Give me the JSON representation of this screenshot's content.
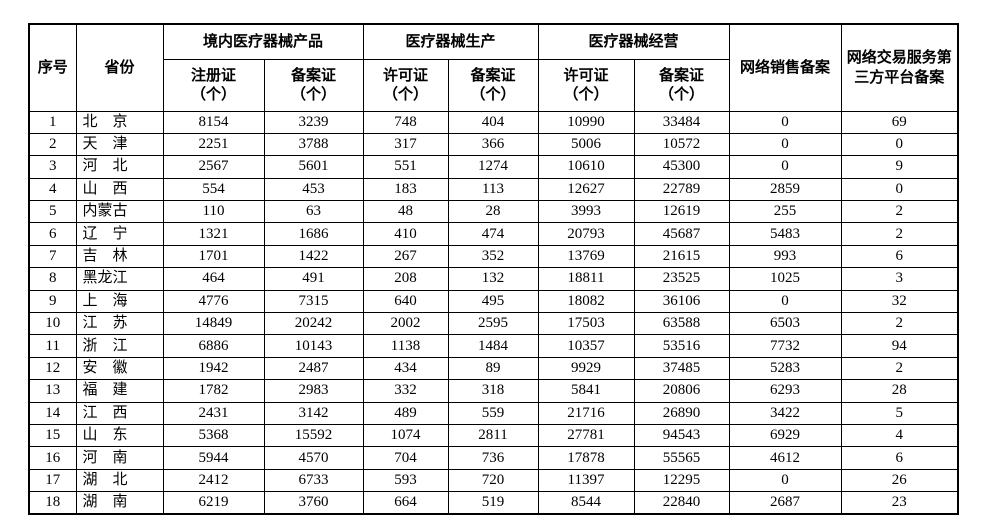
{
  "table": {
    "headers": {
      "no": "序号",
      "province": "省份",
      "domestic_products": "境内医疗器械产品",
      "production": "医疗器械生产",
      "operation": "医疗器械经营",
      "net_sales": "网络销售备案",
      "third_party": "网络交易服务第三方平台备案"
    },
    "sub_headers": [
      "注册证\n（个）",
      "备案证\n（个）",
      "许可证\n（个）",
      "备案证\n（个）",
      "许可证\n（个）",
      "备案证\n（个）"
    ],
    "rows": [
      [
        "1",
        "北　京",
        "8154",
        "3239",
        "748",
        "404",
        "10990",
        "33484",
        "0",
        "69"
      ],
      [
        "2",
        "天　津",
        "2251",
        "3788",
        "317",
        "366",
        "5006",
        "10572",
        "0",
        "0"
      ],
      [
        "3",
        "河　北",
        "2567",
        "5601",
        "551",
        "1274",
        "10610",
        "45300",
        "0",
        "9"
      ],
      [
        "4",
        "山　西",
        "554",
        "453",
        "183",
        "113",
        "12627",
        "22789",
        "2859",
        "0"
      ],
      [
        "5",
        "内蒙古",
        "110",
        "63",
        "48",
        "28",
        "3993",
        "12619",
        "255",
        "2"
      ],
      [
        "6",
        "辽　宁",
        "1321",
        "1686",
        "410",
        "474",
        "20793",
        "45687",
        "5483",
        "2"
      ],
      [
        "7",
        "吉　林",
        "1701",
        "1422",
        "267",
        "352",
        "13769",
        "21615",
        "993",
        "6"
      ],
      [
        "8",
        "黑龙江",
        "464",
        "491",
        "208",
        "132",
        "18811",
        "23525",
        "1025",
        "3"
      ],
      [
        "9",
        "上　海",
        "4776",
        "7315",
        "640",
        "495",
        "18082",
        "36106",
        "0",
        "32"
      ],
      [
        "10",
        "江　苏",
        "14849",
        "20242",
        "2002",
        "2595",
        "17503",
        "63588",
        "6503",
        "2"
      ],
      [
        "11",
        "浙　江",
        "6886",
        "10143",
        "1138",
        "1484",
        "10357",
        "53516",
        "7732",
        "94"
      ],
      [
        "12",
        "安　徽",
        "1942",
        "2487",
        "434",
        "89",
        "9929",
        "37485",
        "5283",
        "2"
      ],
      [
        "13",
        "福　建",
        "1782",
        "2983",
        "332",
        "318",
        "5841",
        "20806",
        "6293",
        "28"
      ],
      [
        "14",
        "江　西",
        "2431",
        "3142",
        "489",
        "559",
        "21716",
        "26890",
        "3422",
        "5"
      ],
      [
        "15",
        "山　东",
        "5368",
        "15592",
        "1074",
        "2811",
        "27781",
        "94543",
        "6929",
        "4"
      ],
      [
        "16",
        "河　南",
        "5944",
        "4570",
        "704",
        "736",
        "17878",
        "55565",
        "4612",
        "6"
      ],
      [
        "17",
        "湖　北",
        "2412",
        "6733",
        "593",
        "720",
        "11397",
        "12295",
        "0",
        "26"
      ],
      [
        "18",
        "湖　南",
        "6219",
        "3760",
        "664",
        "519",
        "8544",
        "22840",
        "2687",
        "23"
      ]
    ]
  },
  "colors": {
    "border": "#000000",
    "background": "#ffffff",
    "text": "#000000"
  }
}
